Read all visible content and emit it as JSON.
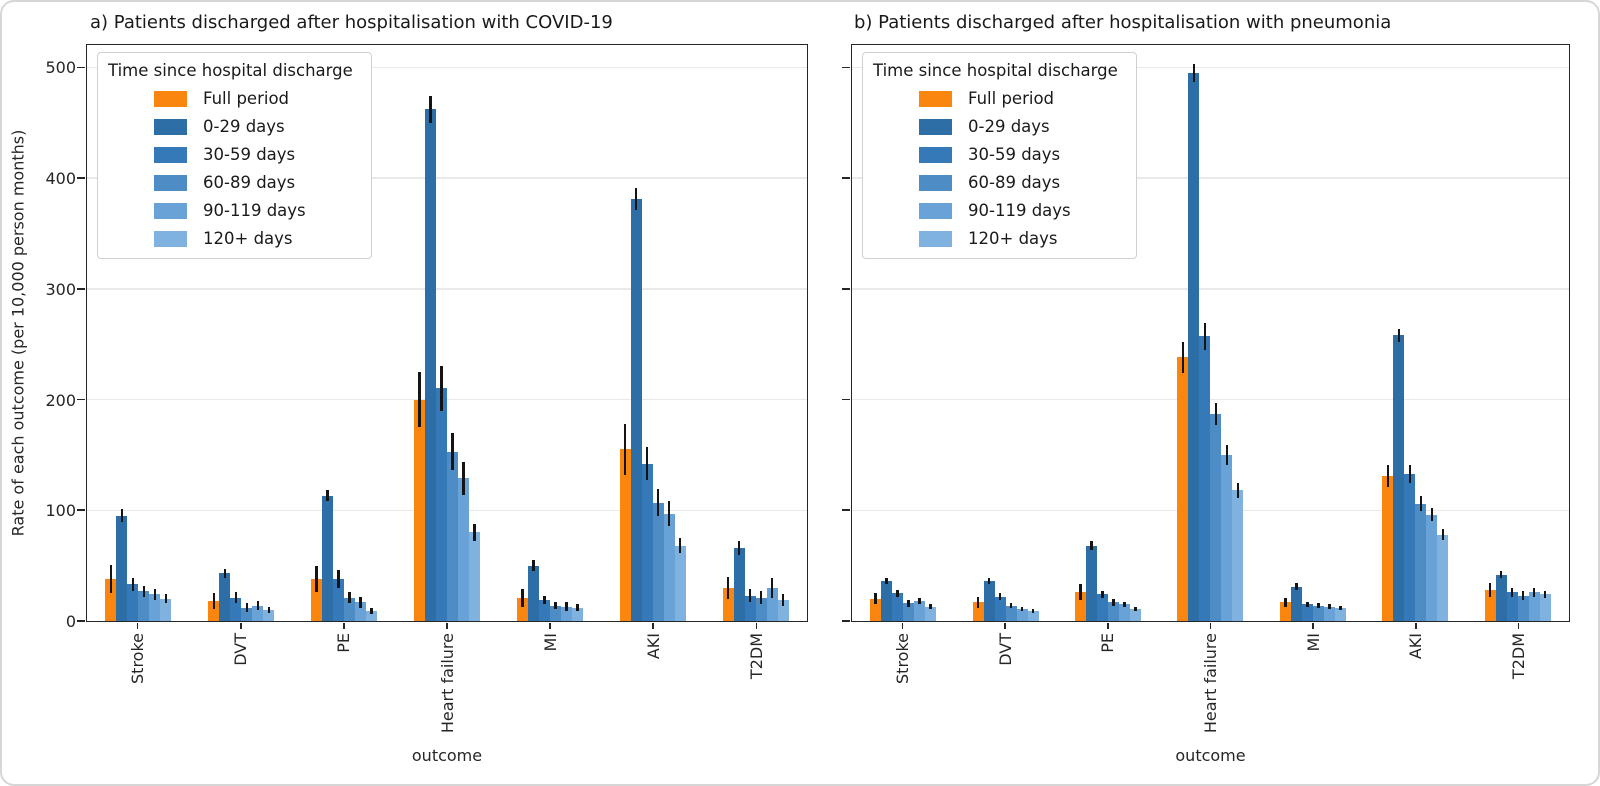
{
  "figure": {
    "panels": [
      {
        "id": "a",
        "title": "a) Patients discharged after hospitalisation with COVID-19"
      },
      {
        "id": "b",
        "title": "b) Patients discharged after hospitalisation with pneumonia"
      }
    ]
  },
  "legend": {
    "title": "Time since hospital discharge",
    "entries": [
      {
        "label": "Full period",
        "color": "#fb860f"
      },
      {
        "label": "0-29 days",
        "color": "#2d6ea7"
      },
      {
        "label": "30-59 days",
        "color": "#3679b9"
      },
      {
        "label": "60-89 days",
        "color": "#4e8cc6"
      },
      {
        "label": "90-119 days",
        "color": "#69a2d6"
      },
      {
        "label": "120+ days",
        "color": "#80b2e0"
      }
    ]
  },
  "axes": {
    "ylabel": "Rate of each outcome (per 10,000 person months)",
    "xlabel": "outcome",
    "yticks": [
      0,
      100,
      200,
      300,
      400,
      500
    ],
    "ylim": [
      0,
      522
    ],
    "grid": "horizontal",
    "xticklabel_rotation": 90
  },
  "chart_data": [
    {
      "type": "bar",
      "title": "a) Patients discharged after hospitalisation with COVID-19",
      "categories": [
        "Stroke",
        "DVT",
        "PE",
        "Heart failure",
        "MI",
        "AKI",
        "T2DM"
      ],
      "series": [
        {
          "name": "Full period",
          "values": [
            38,
            18,
            38,
            200,
            21,
            155,
            30
          ],
          "errors": [
            13,
            7,
            12,
            25,
            8,
            23,
            10
          ]
        },
        {
          "name": "0-29 days",
          "values": [
            95,
            43,
            113,
            462,
            50,
            381,
            66
          ],
          "errors": [
            6,
            4,
            5,
            12,
            5,
            10,
            6
          ]
        },
        {
          "name": "30-59 days",
          "values": [
            33,
            21,
            38,
            210,
            19,
            142,
            23
          ],
          "errors": [
            6,
            5,
            8,
            20,
            4,
            15,
            6
          ]
        },
        {
          "name": "60-89 days",
          "values": [
            27,
            12,
            21,
            153,
            14,
            107,
            21
          ],
          "errors": [
            5,
            4,
            5,
            17,
            3,
            12,
            6
          ]
        },
        {
          "name": "90-119 days",
          "values": [
            24,
            14,
            17,
            129,
            13,
            97,
            30
          ],
          "errors": [
            5,
            4,
            5,
            15,
            4,
            11,
            9
          ]
        },
        {
          "name": "120+ days",
          "values": [
            20,
            10,
            9,
            80,
            12,
            68,
            19
          ],
          "errors": [
            4,
            3,
            3,
            8,
            3,
            7,
            5
          ]
        }
      ]
    },
    {
      "type": "bar",
      "title": "b) Patients discharged after hospitalisation with pneumonia",
      "categories": [
        "Stroke",
        "DVT",
        "PE",
        "Heart failure",
        "MI",
        "AKI",
        "T2DM"
      ],
      "series": [
        {
          "name": "Full period",
          "values": [
            20,
            17,
            26,
            238,
            17,
            131,
            28
          ],
          "errors": [
            5,
            5,
            7,
            14,
            4,
            10,
            6
          ]
        },
        {
          "name": "0-29 days",
          "values": [
            36,
            36,
            68,
            495,
            31,
            258,
            42
          ],
          "errors": [
            3,
            3,
            4,
            8,
            3,
            6,
            3
          ]
        },
        {
          "name": "30-59 days",
          "values": [
            25,
            22,
            24,
            257,
            15,
            133,
            26
          ],
          "errors": [
            3,
            3,
            3,
            12,
            2,
            8,
            4
          ]
        },
        {
          "name": "60-89 days",
          "values": [
            16,
            14,
            17,
            187,
            14,
            106,
            23
          ],
          "errors": [
            3,
            2,
            3,
            10,
            2,
            7,
            4
          ]
        },
        {
          "name": "90-119 days",
          "values": [
            18,
            11,
            15,
            150,
            13,
            96,
            26
          ],
          "errors": [
            3,
            2,
            2,
            9,
            2,
            6,
            4
          ]
        },
        {
          "name": "120+ days",
          "values": [
            13,
            9,
            11,
            118,
            12,
            78,
            24
          ],
          "errors": [
            2,
            2,
            2,
            7,
            2,
            5,
            3
          ]
        }
      ]
    }
  ]
}
